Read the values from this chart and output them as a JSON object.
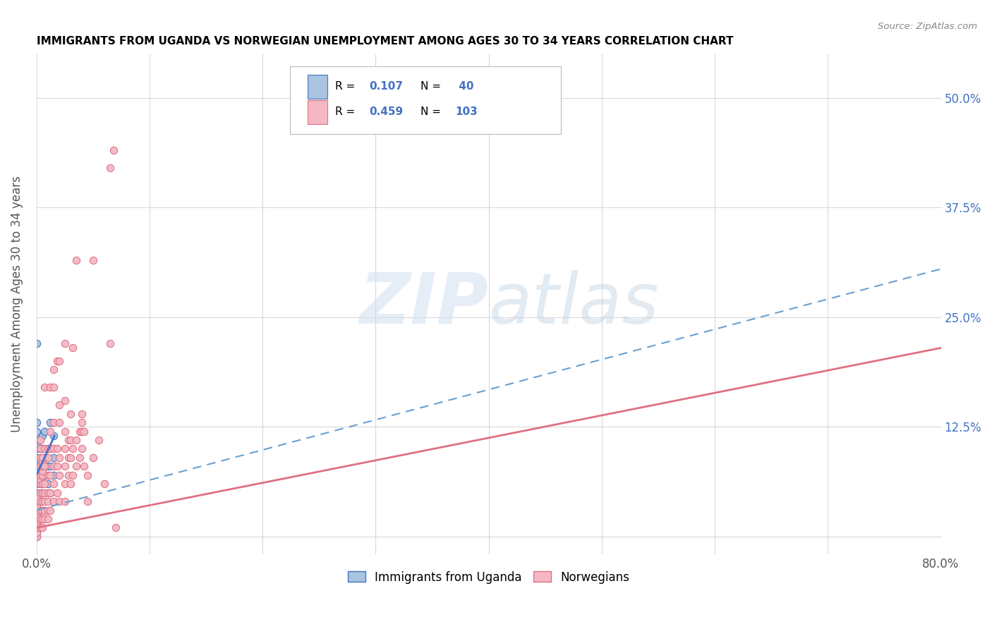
{
  "title": "IMMIGRANTS FROM UGANDA VS NORWEGIAN UNEMPLOYMENT AMONG AGES 30 TO 34 YEARS CORRELATION CHART",
  "source": "Source: ZipAtlas.com",
  "ylabel_label": "Unemployment Among Ages 30 to 34 years",
  "legend_label1": "Immigrants from Uganda",
  "legend_label2": "Norwegians",
  "color_uganda": "#a8c4e0",
  "color_norway": "#f4b8c5",
  "color_uganda_line": "#4472c4",
  "color_norway_line": "#e07080",
  "color_blue_text": "#4472c4",
  "watermark_zip": "ZIP",
  "watermark_atlas": "atlas",
  "uganda_points": [
    [
      0.0,
      0.0
    ],
    [
      0.0,
      0.005
    ],
    [
      0.0,
      0.01
    ],
    [
      0.0,
      0.015
    ],
    [
      0.0,
      0.02
    ],
    [
      0.0,
      0.025
    ],
    [
      0.0,
      0.03
    ],
    [
      0.0,
      0.04
    ],
    [
      0.0,
      0.05
    ],
    [
      0.0,
      0.06
    ],
    [
      0.0,
      0.065
    ],
    [
      0.0,
      0.07
    ],
    [
      0.0,
      0.08
    ],
    [
      0.0,
      0.09
    ],
    [
      0.0,
      0.1
    ],
    [
      0.0,
      0.105
    ],
    [
      0.0,
      0.11
    ],
    [
      0.0,
      0.12
    ],
    [
      0.0,
      0.13
    ],
    [
      0.0,
      0.22
    ],
    [
      0.003,
      0.04
    ],
    [
      0.003,
      0.06
    ],
    [
      0.003,
      0.08
    ],
    [
      0.003,
      0.1
    ],
    [
      0.005,
      0.05
    ],
    [
      0.005,
      0.08
    ],
    [
      0.005,
      0.1
    ],
    [
      0.005,
      0.115
    ],
    [
      0.007,
      0.07
    ],
    [
      0.007,
      0.09
    ],
    [
      0.007,
      0.12
    ],
    [
      0.01,
      0.06
    ],
    [
      0.01,
      0.08
    ],
    [
      0.01,
      0.1
    ],
    [
      0.012,
      0.05
    ],
    [
      0.012,
      0.08
    ],
    [
      0.012,
      0.13
    ],
    [
      0.015,
      0.07
    ],
    [
      0.015,
      0.09
    ],
    [
      0.015,
      0.115
    ]
  ],
  "norway_points": [
    [
      0.0,
      0.0
    ],
    [
      0.0,
      0.005
    ],
    [
      0.0,
      0.01
    ],
    [
      0.0,
      0.015
    ],
    [
      0.0,
      0.02
    ],
    [
      0.0,
      0.025
    ],
    [
      0.0,
      0.03
    ],
    [
      0.0,
      0.035
    ],
    [
      0.0,
      0.04
    ],
    [
      0.0,
      0.045
    ],
    [
      0.003,
      0.01
    ],
    [
      0.003,
      0.02
    ],
    [
      0.003,
      0.03
    ],
    [
      0.003,
      0.04
    ],
    [
      0.003,
      0.05
    ],
    [
      0.003,
      0.06
    ],
    [
      0.003,
      0.065
    ],
    [
      0.003,
      0.07
    ],
    [
      0.003,
      0.08
    ],
    [
      0.003,
      0.09
    ],
    [
      0.003,
      0.1
    ],
    [
      0.003,
      0.11
    ],
    [
      0.005,
      0.01
    ],
    [
      0.005,
      0.02
    ],
    [
      0.005,
      0.03
    ],
    [
      0.005,
      0.04
    ],
    [
      0.005,
      0.05
    ],
    [
      0.005,
      0.06
    ],
    [
      0.005,
      0.07
    ],
    [
      0.005,
      0.075
    ],
    [
      0.005,
      0.08
    ],
    [
      0.005,
      0.085
    ],
    [
      0.005,
      0.09
    ],
    [
      0.007,
      0.02
    ],
    [
      0.007,
      0.03
    ],
    [
      0.007,
      0.04
    ],
    [
      0.007,
      0.05
    ],
    [
      0.007,
      0.06
    ],
    [
      0.007,
      0.08
    ],
    [
      0.007,
      0.1
    ],
    [
      0.007,
      0.17
    ],
    [
      0.01,
      0.02
    ],
    [
      0.01,
      0.03
    ],
    [
      0.01,
      0.04
    ],
    [
      0.01,
      0.05
    ],
    [
      0.01,
      0.07
    ],
    [
      0.01,
      0.09
    ],
    [
      0.01,
      0.1
    ],
    [
      0.012,
      0.03
    ],
    [
      0.012,
      0.05
    ],
    [
      0.012,
      0.07
    ],
    [
      0.012,
      0.1
    ],
    [
      0.012,
      0.12
    ],
    [
      0.012,
      0.17
    ],
    [
      0.015,
      0.04
    ],
    [
      0.015,
      0.06
    ],
    [
      0.015,
      0.08
    ],
    [
      0.015,
      0.1
    ],
    [
      0.015,
      0.13
    ],
    [
      0.015,
      0.17
    ],
    [
      0.015,
      0.19
    ],
    [
      0.018,
      0.05
    ],
    [
      0.018,
      0.08
    ],
    [
      0.018,
      0.1
    ],
    [
      0.018,
      0.2
    ],
    [
      0.02,
      0.04
    ],
    [
      0.02,
      0.07
    ],
    [
      0.02,
      0.09
    ],
    [
      0.02,
      0.13
    ],
    [
      0.02,
      0.15
    ],
    [
      0.02,
      0.2
    ],
    [
      0.025,
      0.04
    ],
    [
      0.025,
      0.06
    ],
    [
      0.025,
      0.08
    ],
    [
      0.025,
      0.1
    ],
    [
      0.025,
      0.12
    ],
    [
      0.025,
      0.155
    ],
    [
      0.025,
      0.22
    ],
    [
      0.028,
      0.07
    ],
    [
      0.028,
      0.09
    ],
    [
      0.028,
      0.11
    ],
    [
      0.03,
      0.06
    ],
    [
      0.03,
      0.09
    ],
    [
      0.03,
      0.11
    ],
    [
      0.03,
      0.14
    ],
    [
      0.032,
      0.07
    ],
    [
      0.032,
      0.1
    ],
    [
      0.032,
      0.215
    ],
    [
      0.035,
      0.08
    ],
    [
      0.035,
      0.11
    ],
    [
      0.035,
      0.315
    ],
    [
      0.038,
      0.09
    ],
    [
      0.038,
      0.12
    ],
    [
      0.04,
      0.1
    ],
    [
      0.04,
      0.13
    ],
    [
      0.04,
      0.12
    ],
    [
      0.04,
      0.14
    ],
    [
      0.042,
      0.08
    ],
    [
      0.042,
      0.12
    ],
    [
      0.045,
      0.04
    ],
    [
      0.045,
      0.07
    ],
    [
      0.05,
      0.09
    ],
    [
      0.05,
      0.315
    ],
    [
      0.055,
      0.11
    ],
    [
      0.06,
      0.06
    ],
    [
      0.065,
      0.22
    ],
    [
      0.065,
      0.42
    ],
    [
      0.068,
      0.44
    ],
    [
      0.07,
      0.01
    ]
  ],
  "xlim": [
    0.0,
    0.8
  ],
  "ylim": [
    -0.02,
    0.55
  ],
  "uganda_line_x": [
    0.0,
    0.016
  ],
  "uganda_line_y": [
    0.07,
    0.115
  ],
  "norway_line_x": [
    0.0,
    0.8
  ],
  "norway_line_y": [
    0.01,
    0.215
  ],
  "dashed_line_x": [
    0.0,
    0.8
  ],
  "dashed_line_y": [
    0.03,
    0.305
  ]
}
